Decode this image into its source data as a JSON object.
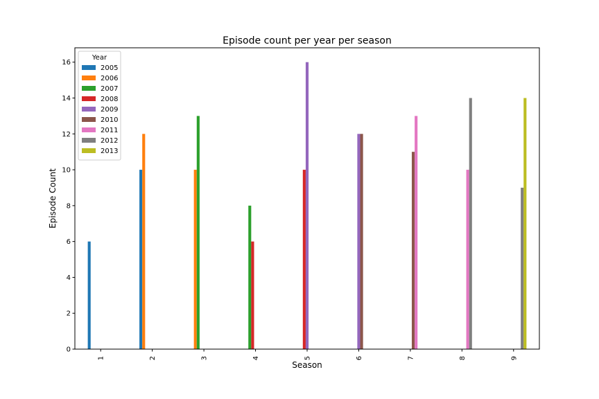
{
  "chart_data": {
    "type": "bar",
    "title": "Episode count per year per season",
    "xlabel": "Season",
    "ylabel": "Episode Count",
    "categories": [
      "1",
      "2",
      "3",
      "4",
      "5",
      "6",
      "7",
      "8",
      "9"
    ],
    "ylim": [
      0,
      16.8
    ],
    "yticks": [
      0,
      2,
      4,
      6,
      8,
      10,
      12,
      14,
      16
    ],
    "grid": false,
    "legend": {
      "title": "Year",
      "placement": "top-left"
    },
    "series": [
      {
        "name": "2005",
        "color": "#1f77b4",
        "values": [
          6,
          10,
          0,
          0,
          0,
          0,
          0,
          0,
          0
        ]
      },
      {
        "name": "2006",
        "color": "#ff7f0e",
        "values": [
          0,
          12,
          10,
          0,
          0,
          0,
          0,
          0,
          0
        ]
      },
      {
        "name": "2007",
        "color": "#2ca02c",
        "values": [
          0,
          0,
          13,
          8,
          0,
          0,
          0,
          0,
          0
        ]
      },
      {
        "name": "2008",
        "color": "#d62728",
        "values": [
          0,
          0,
          0,
          6,
          10,
          0,
          0,
          0,
          0
        ]
      },
      {
        "name": "2009",
        "color": "#9467bd",
        "values": [
          0,
          0,
          0,
          0,
          16,
          12,
          0,
          0,
          0
        ]
      },
      {
        "name": "2010",
        "color": "#8c564b",
        "values": [
          0,
          0,
          0,
          0,
          0,
          12,
          11,
          0,
          0
        ]
      },
      {
        "name": "2011",
        "color": "#e377c2",
        "values": [
          0,
          0,
          0,
          0,
          0,
          0,
          13,
          10,
          0
        ]
      },
      {
        "name": "2012",
        "color": "#7f7f7f",
        "values": [
          0,
          0,
          0,
          0,
          0,
          0,
          0,
          14,
          9
        ]
      },
      {
        "name": "2013",
        "color": "#bcbd22",
        "values": [
          0,
          0,
          0,
          0,
          0,
          0,
          0,
          0,
          14
        ]
      }
    ]
  }
}
